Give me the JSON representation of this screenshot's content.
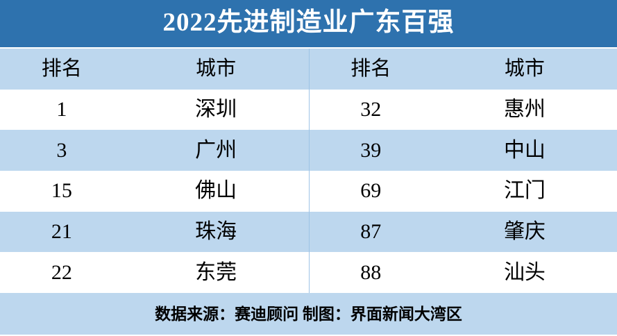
{
  "title": "2022先进制造业广东百强",
  "colors": {
    "title_bar_bg": "#2e72ae",
    "title_text": "#ffffff",
    "row_alt_bg": "#bdd7ee",
    "row_bg": "#ffffff",
    "divider": "#9dc3e6",
    "body_text": "#000000"
  },
  "chart_data": {
    "type": "table",
    "title": "2022先进制造业广东百强",
    "columns": [
      "排名",
      "城市",
      "排名",
      "城市"
    ],
    "rows": [
      [
        "1",
        "深圳",
        "32",
        "惠州"
      ],
      [
        "3",
        "广州",
        "39",
        "中山"
      ],
      [
        "15",
        "佛山",
        "69",
        "江门"
      ],
      [
        "21",
        "珠海",
        "87",
        "肇庆"
      ],
      [
        "22",
        "东莞",
        "88",
        "汕头"
      ]
    ],
    "layout": "two-column-halves, alternating row stripes, header row shaded",
    "source_note": "数据来源：赛迪顾问 制图：界面新闻大湾区"
  }
}
